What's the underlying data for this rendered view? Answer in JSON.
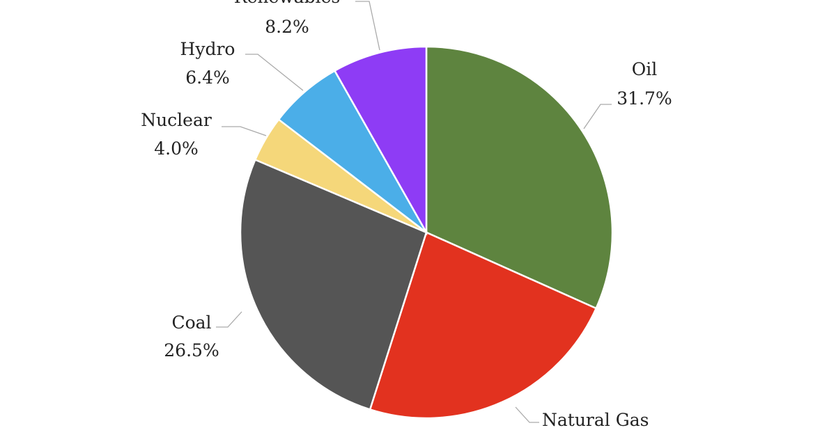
{
  "chart_data": {
    "type": "pie",
    "title": "",
    "start_angle": "12 o'clock",
    "direction": "clockwise",
    "slices": [
      {
        "label": "Oil",
        "value": 31.7,
        "value_label": "31.7%",
        "color": "#5e843f"
      },
      {
        "label": "Natural Gas",
        "value": 23.2,
        "value_label": "",
        "color": "#e2321f"
      },
      {
        "label": "Coal",
        "value": 26.5,
        "value_label": "26.5%",
        "color": "#555555"
      },
      {
        "label": "Nuclear",
        "value": 4.0,
        "value_label": "4.0%",
        "color": "#f5d77a"
      },
      {
        "label": "Hydro",
        "value": 6.4,
        "value_label": "6.4%",
        "color": "#4baee8"
      },
      {
        "label": "Renewables",
        "value": 8.2,
        "value_label": "8.2%",
        "color": "#8e3cf5"
      }
    ],
    "legend": "none"
  }
}
